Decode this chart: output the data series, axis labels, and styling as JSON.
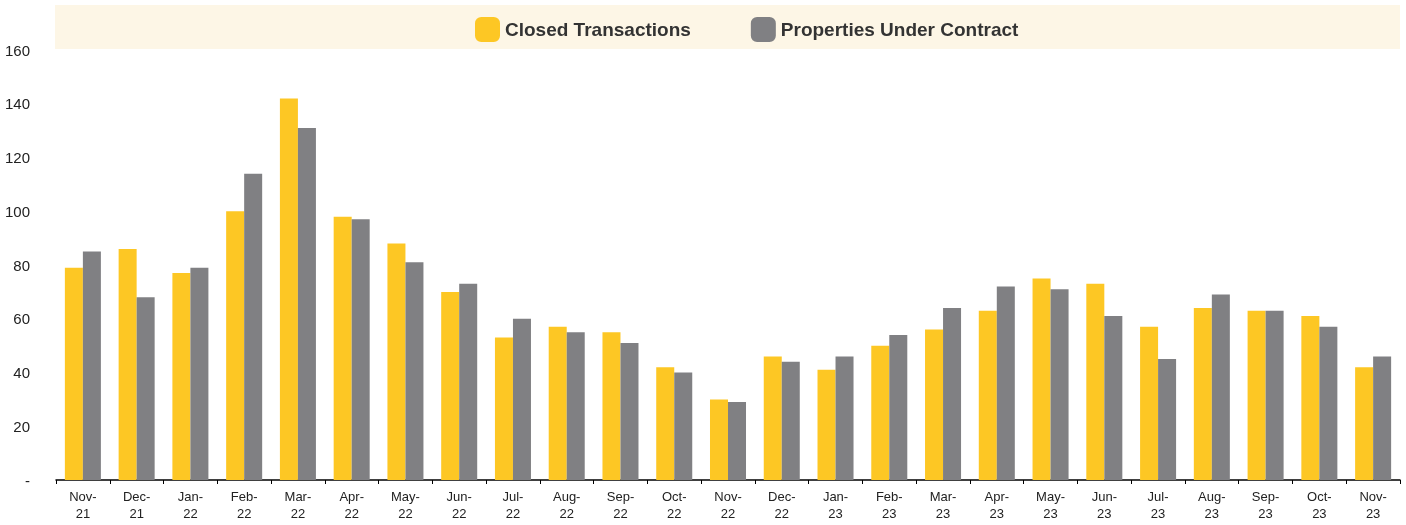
{
  "chart_data": {
    "type": "bar",
    "categories": [
      "Nov-21",
      "Dec-21",
      "Jan-22",
      "Feb-22",
      "Mar-22",
      "Apr-22",
      "May-22",
      "Jun-22",
      "Jul-22",
      "Aug-22",
      "Sep-22",
      "Oct-22",
      "Nov-22",
      "Dec-22",
      "Jan-23",
      "Feb-23",
      "Mar-23",
      "Apr-23",
      "May-23",
      "Jun-23",
      "Jul-23",
      "Aug-23",
      "Sep-23",
      "Oct-23",
      "Nov-23"
    ],
    "series": [
      {
        "name": "Closed Transactions",
        "color": "#fdc724",
        "values": [
          79,
          86,
          77,
          100,
          142,
          98,
          88,
          70,
          53,
          57,
          55,
          42,
          30,
          46,
          41,
          50,
          56,
          63,
          75,
          73,
          57,
          64,
          63,
          61,
          42
        ]
      },
      {
        "name": "Properties Under Contract",
        "color": "#808083",
        "values": [
          85,
          68,
          79,
          114,
          131,
          97,
          81,
          73,
          60,
          55,
          51,
          40,
          29,
          44,
          46,
          54,
          64,
          72,
          71,
          61,
          45,
          69,
          63,
          57,
          46
        ]
      }
    ],
    "ylim": [
      0,
      160
    ],
    "yticks": [
      {
        "value": 0,
        "label": "-"
      },
      20,
      40,
      60,
      80,
      100,
      120,
      140,
      160
    ],
    "grid": false,
    "legend": "top"
  }
}
